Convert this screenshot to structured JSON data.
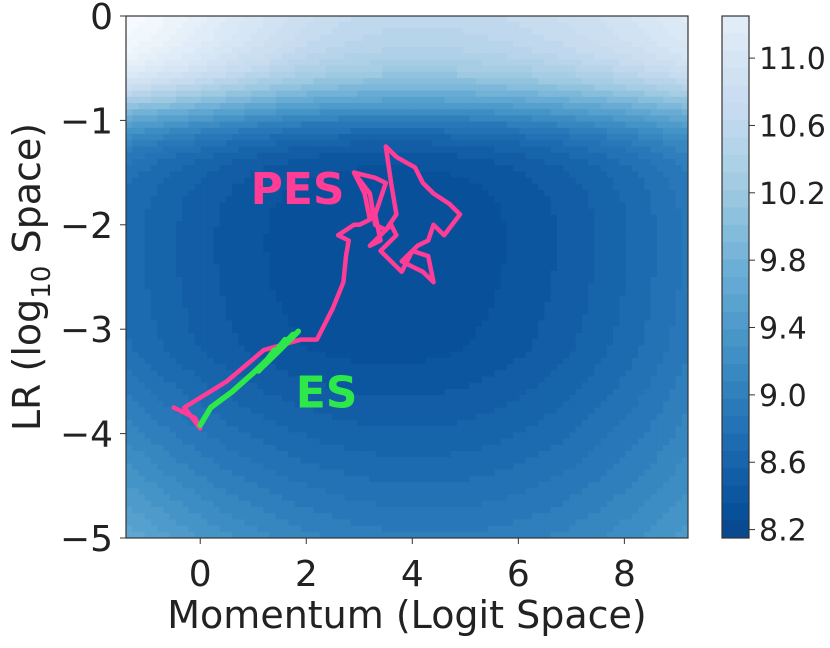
{
  "chart_data": {
    "type": "contour",
    "xlabel": "Momentum (Logit Space)",
    "ylabel_prefix": "LR (log",
    "ylabel_sub": "10",
    "ylabel_suffix": " Space)",
    "xlim": [
      -1.4,
      9.2
    ],
    "ylim": [
      -5,
      0
    ],
    "xticks": [
      0,
      2,
      4,
      6,
      8
    ],
    "yticks": [
      0,
      -1,
      -2,
      -3,
      -4,
      -5
    ],
    "colorbar": {
      "range": [
        8.15,
        11.25
      ],
      "ticks": [
        11.0,
        10.6,
        10.2,
        9.8,
        9.4,
        9.0,
        8.6,
        8.2
      ],
      "tick_labels": [
        "11.0",
        "10.6",
        "10.2",
        "9.8",
        "9.4",
        "9.0",
        "8.6",
        "8.2"
      ],
      "colormap": "Blues"
    },
    "series": [
      {
        "name": "PES",
        "color": "#ff3c96",
        "points": [
          [
            -0.5,
            -3.75
          ],
          [
            -0.1,
            -3.85
          ],
          [
            0.0,
            -3.95
          ],
          [
            -0.3,
            -3.75
          ],
          [
            0.5,
            -3.5
          ],
          [
            1.2,
            -3.2
          ],
          [
            1.9,
            -3.1
          ],
          [
            2.2,
            -3.1
          ],
          [
            2.5,
            -2.8
          ],
          [
            2.7,
            -2.55
          ],
          [
            2.75,
            -2.3
          ],
          [
            2.8,
            -2.15
          ],
          [
            2.6,
            -2.1
          ],
          [
            2.9,
            -2.0
          ],
          [
            3.0,
            -2.0
          ],
          [
            3.2,
            -1.95
          ],
          [
            3.1,
            -1.7
          ],
          [
            2.9,
            -1.5
          ],
          [
            3.3,
            -1.55
          ],
          [
            3.5,
            -1.6
          ],
          [
            3.3,
            -1.9
          ],
          [
            3.4,
            -2.15
          ],
          [
            3.2,
            -2.2
          ],
          [
            3.6,
            -2.0
          ],
          [
            3.7,
            -2.1
          ],
          [
            3.4,
            -2.25
          ],
          [
            3.8,
            -2.45
          ],
          [
            4.0,
            -2.25
          ],
          [
            4.3,
            -2.3
          ],
          [
            4.4,
            -2.55
          ],
          [
            4.2,
            -2.45
          ],
          [
            4.0,
            -2.4
          ],
          [
            3.8,
            -2.35
          ],
          [
            4.1,
            -2.2
          ],
          [
            4.3,
            -2.15
          ],
          [
            4.4,
            -2.0
          ],
          [
            4.6,
            -2.1
          ],
          [
            4.9,
            -1.9
          ],
          [
            4.7,
            -1.8
          ],
          [
            4.4,
            -1.7
          ],
          [
            4.2,
            -1.6
          ],
          [
            4.05,
            -1.45
          ],
          [
            3.7,
            -1.35
          ],
          [
            3.5,
            -1.25
          ],
          [
            3.6,
            -1.6
          ],
          [
            3.7,
            -1.9
          ],
          [
            3.5,
            -2.05
          ],
          [
            3.3,
            -2.0
          ],
          [
            3.2,
            -1.7
          ],
          [
            2.9,
            -1.5
          ]
        ]
      },
      {
        "name": "ES",
        "color": "#2ee84a",
        "points": [
          [
            0.0,
            -3.92
          ],
          [
            0.2,
            -3.75
          ],
          [
            0.6,
            -3.6
          ],
          [
            1.0,
            -3.42
          ],
          [
            1.35,
            -3.25
          ],
          [
            1.7,
            -3.1
          ],
          [
            1.85,
            -3.02
          ],
          [
            1.5,
            -3.2
          ],
          [
            1.2,
            -3.35
          ],
          [
            1.6,
            -3.1
          ],
          [
            1.3,
            -3.3
          ],
          [
            1.75,
            -3.05
          ],
          [
            1.1,
            -3.4
          ],
          [
            1.4,
            -3.2
          ]
        ]
      }
    ],
    "annotations": [
      {
        "text": "PES",
        "color": "#ff3c96",
        "x": 0.95,
        "y": -1.8
      },
      {
        "text": "ES",
        "color": "#2ee84a",
        "x": 1.8,
        "y": -3.75
      }
    ]
  }
}
